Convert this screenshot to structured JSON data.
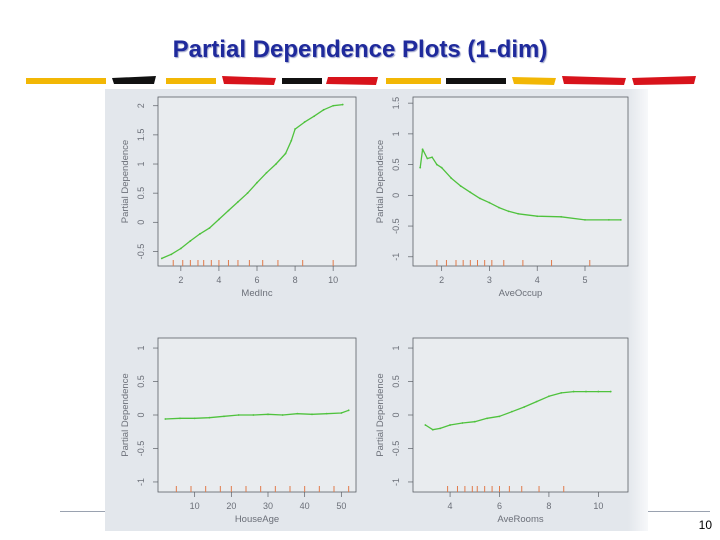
{
  "slide": {
    "title": "Partial Dependence Plots (1-dim)",
    "page_number": "10"
  },
  "colors": {
    "title": "#1f2a9c",
    "curve": "#4fc23d",
    "rug": "#e07a4a",
    "stripe_yellow": "#f2b705",
    "stripe_red": "#d8131b",
    "stripe_black": "#111111"
  },
  "chart_data": [
    {
      "type": "line",
      "title": "",
      "xlabel": "MedInc",
      "ylabel": "Partial Dependence",
      "xlim": [
        0.8,
        11.2
      ],
      "ylim": [
        -0.75,
        2.15
      ],
      "xticks": [
        2,
        4,
        6,
        8,
        10
      ],
      "yticks": [
        -0.5,
        0.0,
        0.5,
        1.0,
        1.5,
        2.0
      ],
      "rug": [
        1.6,
        2.1,
        2.5,
        2.9,
        3.2,
        3.6,
        4.0,
        4.5,
        5.0,
        5.6,
        6.3,
        7.1,
        8.4,
        10.0
      ],
      "x": [
        1.0,
        1.5,
        2.0,
        2.5,
        3.0,
        3.5,
        4.0,
        4.5,
        5.0,
        5.5,
        6.0,
        6.5,
        7.0,
        7.5,
        7.8,
        8.0,
        8.5,
        9.0,
        9.5,
        10.0,
        10.5
      ],
      "y": [
        -0.62,
        -0.55,
        -0.45,
        -0.32,
        -0.2,
        -0.1,
        0.05,
        0.2,
        0.35,
        0.5,
        0.68,
        0.85,
        1.0,
        1.18,
        1.4,
        1.6,
        1.72,
        1.82,
        1.93,
        2.0,
        2.02
      ]
    },
    {
      "type": "line",
      "title": "",
      "xlabel": "AveOccup",
      "ylabel": "Partial Dependence",
      "xlim": [
        1.4,
        5.9
      ],
      "ylim": [
        -1.15,
        1.6
      ],
      "xticks": [
        2,
        3,
        4,
        5
      ],
      "yticks": [
        -1.0,
        -0.5,
        0.0,
        0.5,
        1.0,
        1.5
      ],
      "rug": [
        1.9,
        2.1,
        2.3,
        2.45,
        2.6,
        2.75,
        2.9,
        3.05,
        3.3,
        3.7,
        4.3,
        5.1
      ],
      "x": [
        1.55,
        1.6,
        1.7,
        1.8,
        1.9,
        2.0,
        2.2,
        2.4,
        2.6,
        2.8,
        3.0,
        3.2,
        3.4,
        3.6,
        4.0,
        4.5,
        5.0,
        5.5,
        5.75
      ],
      "y": [
        0.45,
        0.75,
        0.6,
        0.62,
        0.5,
        0.45,
        0.28,
        0.15,
        0.05,
        -0.05,
        -0.12,
        -0.2,
        -0.26,
        -0.3,
        -0.34,
        -0.35,
        -0.4,
        -0.4,
        -0.4
      ]
    },
    {
      "type": "line",
      "title": "",
      "xlabel": "HouseAge",
      "ylabel": "Partial Dependence",
      "xlim": [
        0,
        54
      ],
      "ylim": [
        -1.15,
        1.15
      ],
      "xticks": [
        10,
        20,
        30,
        40,
        50
      ],
      "yticks": [
        -1.0,
        -0.5,
        0.0,
        0.5,
        1.0
      ],
      "rug": [
        5,
        9,
        13,
        17,
        20,
        24,
        28,
        32,
        36,
        40,
        44,
        48,
        52
      ],
      "x": [
        2,
        6,
        10,
        14,
        18,
        22,
        26,
        30,
        34,
        38,
        42,
        46,
        50,
        52
      ],
      "y": [
        -0.06,
        -0.05,
        -0.05,
        -0.04,
        -0.02,
        0.0,
        0.0,
        0.01,
        0.0,
        0.02,
        0.01,
        0.02,
        0.03,
        0.07
      ]
    },
    {
      "type": "line",
      "title": "",
      "xlabel": "AveRooms",
      "ylabel": "Partial Dependence",
      "xlim": [
        2.5,
        11.2
      ],
      "ylim": [
        -1.15,
        1.15
      ],
      "xticks": [
        4,
        6,
        8,
        10
      ],
      "yticks": [
        -1.0,
        -0.5,
        0.0,
        0.5,
        1.0
      ],
      "rug": [
        3.9,
        4.3,
        4.6,
        4.9,
        5.1,
        5.4,
        5.7,
        6.0,
        6.4,
        6.9,
        7.6,
        8.6
      ],
      "x": [
        3.0,
        3.3,
        3.6,
        4.0,
        4.5,
        5.0,
        5.5,
        6.0,
        6.5,
        7.0,
        7.5,
        8.0,
        8.5,
        9.0,
        9.5,
        10.0,
        10.5
      ],
      "y": [
        -0.15,
        -0.22,
        -0.2,
        -0.15,
        -0.12,
        -0.1,
        -0.05,
        -0.02,
        0.05,
        0.12,
        0.2,
        0.28,
        0.33,
        0.35,
        0.35,
        0.35,
        0.35
      ]
    }
  ]
}
